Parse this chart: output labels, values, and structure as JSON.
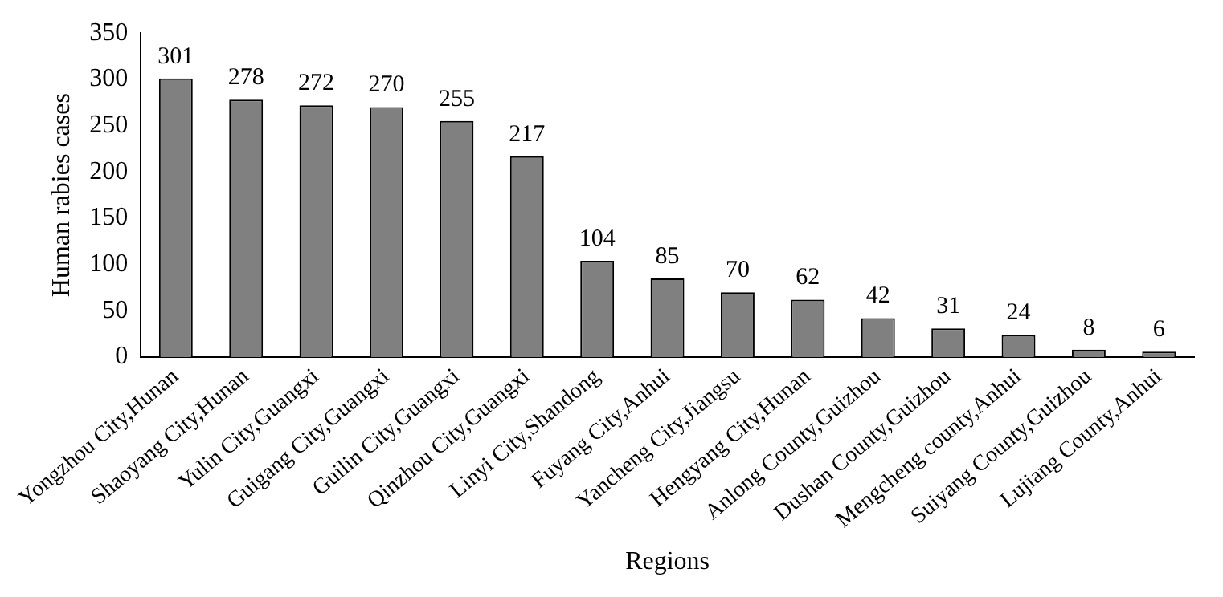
{
  "chart_data": {
    "type": "bar",
    "xlabel": "Regions",
    "ylabel": "Human rabies cases",
    "categories": [
      "Yongzhou City,Hunan",
      "Shaoyang City,Hunan",
      "Yulin City,Guangxi",
      "Guigang City,Guangxi",
      "Guilin City,Guangxi",
      "Qinzhou City,Guangxi",
      "Linyi City,Shandong",
      "Fuyang City,Anhui",
      "Yancheng City,Jiangsu",
      "Hengyang City,Hunan",
      "Anlong County,Guizhou",
      "Dushan County,Guizhou",
      "Mengcheng county,Anhui",
      "Suiyang County,Guizhou",
      "Lujiang County,Anhui"
    ],
    "values": [
      301,
      278,
      272,
      270,
      255,
      217,
      104,
      85,
      70,
      62,
      42,
      31,
      24,
      8,
      6
    ],
    "color": "#808080",
    "ylim": [
      0,
      350
    ],
    "yticks": [
      0,
      50,
      100,
      150,
      200,
      250,
      300,
      350
    ],
    "grid": false,
    "data_labels": true,
    "legend": false
  }
}
